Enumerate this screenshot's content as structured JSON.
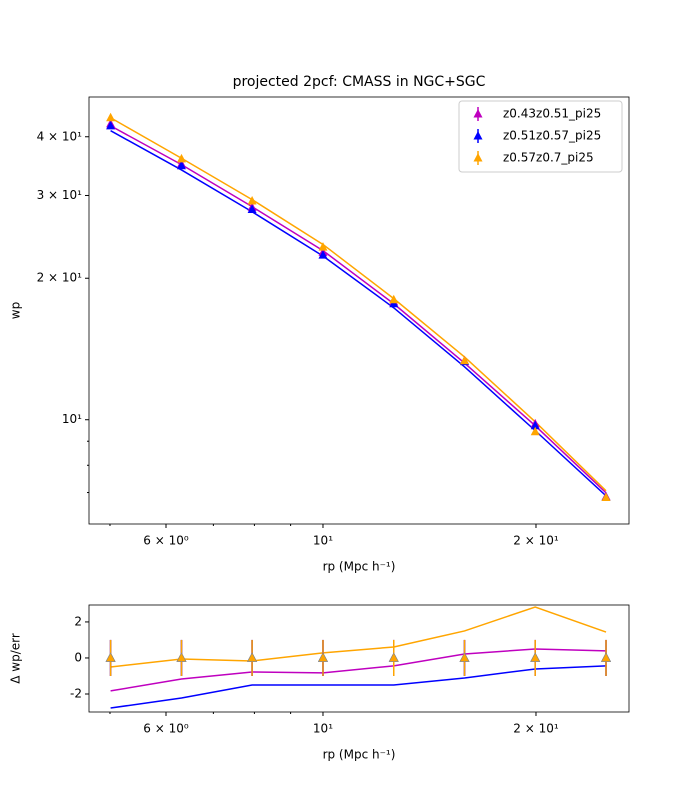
{
  "chart_data": [
    {
      "type": "line",
      "title": "projected 2pcf: CMASS in NGC+SGC",
      "xlabel": "rp (Mpc h⁻¹)",
      "ylabel": "wp",
      "xscale": "log",
      "yscale": "log",
      "x": [
        5.01,
        6.31,
        7.94,
        10.0,
        12.59,
        15.85,
        19.95,
        25.12
      ],
      "xlim": [
        4.67,
        27.07
      ],
      "ylim": [
        6.0,
        48.6
      ],
      "xticks": [
        {
          "value": 6,
          "label": "6 × 10⁰"
        },
        {
          "value": 10,
          "label": "10¹"
        },
        {
          "value": 20,
          "label": "2 × 10¹"
        }
      ],
      "xminorticks": [
        5,
        7,
        8,
        9
      ],
      "yticks": [
        {
          "value": 10,
          "label": "10¹"
        },
        {
          "value": 20,
          "label": "2 × 10¹"
        },
        {
          "value": 30,
          "label": "3 × 10¹"
        },
        {
          "value": 40,
          "label": "4 × 10¹"
        }
      ],
      "yminorticks": [
        7,
        8,
        9
      ],
      "legend": "upper right",
      "series": [
        {
          "name": "z0.43z0.51_pi25",
          "color": "#bf00bf",
          "values": [
            42.6,
            35.0,
            28.3,
            22.7,
            17.8,
            13.35,
            9.8,
            6.86
          ],
          "model": [
            42.2,
            34.9,
            28.4,
            22.9,
            17.65,
            13.2,
            9.71,
            6.99
          ]
        },
        {
          "name": "z0.51z0.57_pi25",
          "color": "#0000ff",
          "values": [
            42.2,
            34.7,
            28.0,
            22.4,
            17.65,
            13.29,
            9.71,
            6.83
          ],
          "model": [
            41.2,
            34.0,
            27.7,
            22.3,
            17.3,
            12.96,
            9.48,
            6.89
          ]
        },
        {
          "name": "z0.57z0.7_pi25",
          "color": "#ffa500",
          "values": [
            43.9,
            35.9,
            29.2,
            23.3,
            18.0,
            13.35,
            9.43,
            6.83
          ],
          "model": [
            43.9,
            36.0,
            29.4,
            23.6,
            18.1,
            13.6,
            9.9,
            7.06
          ]
        }
      ]
    },
    {
      "type": "line",
      "xlabel": "rp (Mpc h⁻¹)",
      "ylabel": "Δ wp/err",
      "xscale": "log",
      "yscale": "linear",
      "x": [
        5.01,
        6.31,
        7.94,
        10.0,
        12.59,
        15.85,
        19.95,
        25.12
      ],
      "xlim": [
        4.67,
        27.07
      ],
      "ylim": [
        -3.0,
        2.94
      ],
      "xticks": [
        {
          "value": 6,
          "label": "6 × 10⁰"
        },
        {
          "value": 10,
          "label": "10¹"
        },
        {
          "value": 20,
          "label": "2 × 10¹"
        }
      ],
      "xminorticks": [
        5,
        7,
        8,
        9
      ],
      "yticks": [
        -2,
        0,
        2
      ],
      "series": [
        {
          "color": "#bf00bf",
          "values": [
            0,
            0,
            0,
            0,
            0,
            0,
            0,
            0
          ],
          "errors": [
            1,
            1,
            1,
            1,
            1,
            1,
            1,
            1
          ],
          "model": [
            -1.83,
            -1.17,
            -0.78,
            -0.83,
            -0.44,
            0.22,
            0.5,
            0.39
          ]
        },
        {
          "color": "#0000ff",
          "values": [
            0,
            0,
            0,
            0,
            0,
            0,
            0,
            0
          ],
          "errors": [
            1,
            1,
            1,
            1,
            1,
            1,
            1,
            1
          ],
          "model": [
            -2.78,
            -2.22,
            -1.5,
            -1.5,
            -1.5,
            -1.11,
            -0.61,
            -0.44
          ]
        },
        {
          "color": "#ffa500",
          "values": [
            0,
            0,
            0,
            0,
            0,
            0,
            0,
            0
          ],
          "errors": [
            1,
            1,
            1,
            1,
            1,
            1,
            1,
            1
          ],
          "model": [
            -0.5,
            -0.06,
            -0.17,
            0.28,
            0.61,
            1.5,
            2.83,
            1.44
          ]
        }
      ]
    }
  ]
}
